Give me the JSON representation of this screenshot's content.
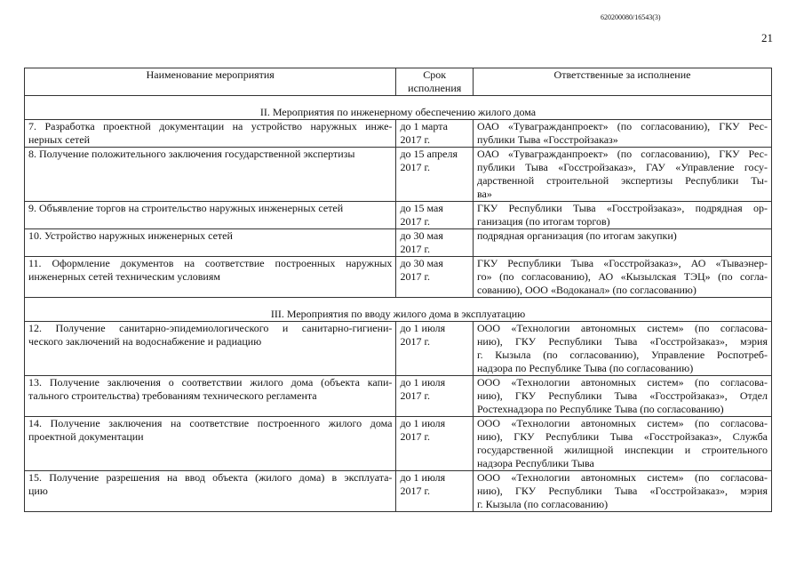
{
  "header": {
    "doc_number": "620200080/16543(3)",
    "page_number": "21"
  },
  "table": {
    "columns": [
      [
        "Наименование мероприятия"
      ],
      [
        "Срок",
        "исполнения"
      ],
      [
        "Ответственные за исполнение"
      ]
    ],
    "sections": [
      {
        "title": "II. Мероприятия по инженерному обеспечению жилого дома",
        "rows": [
          {
            "name": [
              "7. Разработка проектной документации на устройство наружных инже-",
              "нерных сетей"
            ],
            "deadline": [
              "до 1 марта",
              "2017 г."
            ],
            "responsible": [
              "ОАО «Тувагражданпроект» (по согласованию), ГКУ Рес-",
              "публики Тыва «Госстройзаказ»"
            ]
          },
          {
            "name": [
              "8. Получение положительного заключения государственной экспертизы"
            ],
            "deadline": [
              "до 15 апреля",
              "2017 г."
            ],
            "responsible": [
              "ОАО «Тувагражданпроект» (по согласованию), ГКУ Рес-",
              "публики Тыва «Госстройзаказ», ГАУ «Управление госу-",
              "дарственной строительной экспертизы Республики Ты-",
              "ва»"
            ]
          },
          {
            "name": [
              "9. Объявление торгов на строительство  наружных инженерных сетей"
            ],
            "deadline": [
              "до 15 мая",
              "2017 г."
            ],
            "responsible": [
              "ГКУ Республики Тыва «Госстройзаказ», подрядная ор-",
              "ганизация (по итогам торгов)"
            ]
          },
          {
            "name": [
              "10. Устройство наружных инженерных сетей"
            ],
            "deadline": [
              "до 30 мая",
              "2017 г."
            ],
            "responsible": [
              "подрядная организация (по итогам закупки)"
            ]
          },
          {
            "name": [
              "11. Оформление документов на соответствие построенных наружных",
              "инженерных сетей техническим условиям"
            ],
            "deadline": [
              "до 30 мая",
              "2017 г."
            ],
            "responsible": [
              "ГКУ Республики Тыва «Госстройзаказ», АО «Тываэнер-",
              "го» (по согласованию), АО «Кызылская ТЭЦ» (по согла-",
              "сованию), ООО «Водоканал» (по согласованию)"
            ]
          }
        ]
      },
      {
        "title": "III. Мероприятия по вводу жилого дома в эксплуатацию",
        "rows": [
          {
            "name": [
              "12. Получение санитарно-эпидемиологического и санитарно-гигиени-",
              "ческого заключений  на водоснабжение и радиацию"
            ],
            "deadline": [
              "до 1 июля",
              "2017 г."
            ],
            "responsible": [
              "ООО «Технологии автономных систем» (по согласова-",
              "нию), ГКУ Республики Тыва «Госстройзаказ», мэрия",
              "г. Кызыла (по согласованию), Управление Роспотреб-",
              "надзора по Республике Тыва (по согласованию)"
            ]
          },
          {
            "name": [
              "13. Получение заключения о соответствии жилого дома (объекта капи-",
              "тального строительства) требованиям технического регламента"
            ],
            "deadline": [
              "до 1 июля",
              "2017 г."
            ],
            "responsible": [
              "ООО «Технологии автономных систем» (по согласова-",
              "нию), ГКУ Республики Тыва «Госстройзаказ», Отдел",
              "Ростехнадзора по Республике Тыва (по согласованию)"
            ]
          },
          {
            "name": [
              "14. Получение заключения на соответствие построенного жилого дома",
              "проектной документации"
            ],
            "deadline": [
              "до 1 июля",
              "2017 г."
            ],
            "responsible": [
              "ООО «Технологии автономных систем» (по согласова-",
              "нию), ГКУ Республики Тыва «Госстройзаказ», Служба",
              "государственной жилищной инспекции и строительного",
              "надзора Республики Тыва"
            ]
          },
          {
            "name": [
              "15. Получение разрешения на ввод объекта (жилого дома) в эксплуата-",
              "цию"
            ],
            "deadline": [
              "до 1 июля",
              "2017 г."
            ],
            "responsible": [
              "ООО «Технологии автономных систем» (по согласова-",
              "нию), ГКУ Республики Тыва «Госстройзаказ», мэрия",
              "г. Кызыла (по согласованию)"
            ]
          }
        ]
      }
    ]
  }
}
